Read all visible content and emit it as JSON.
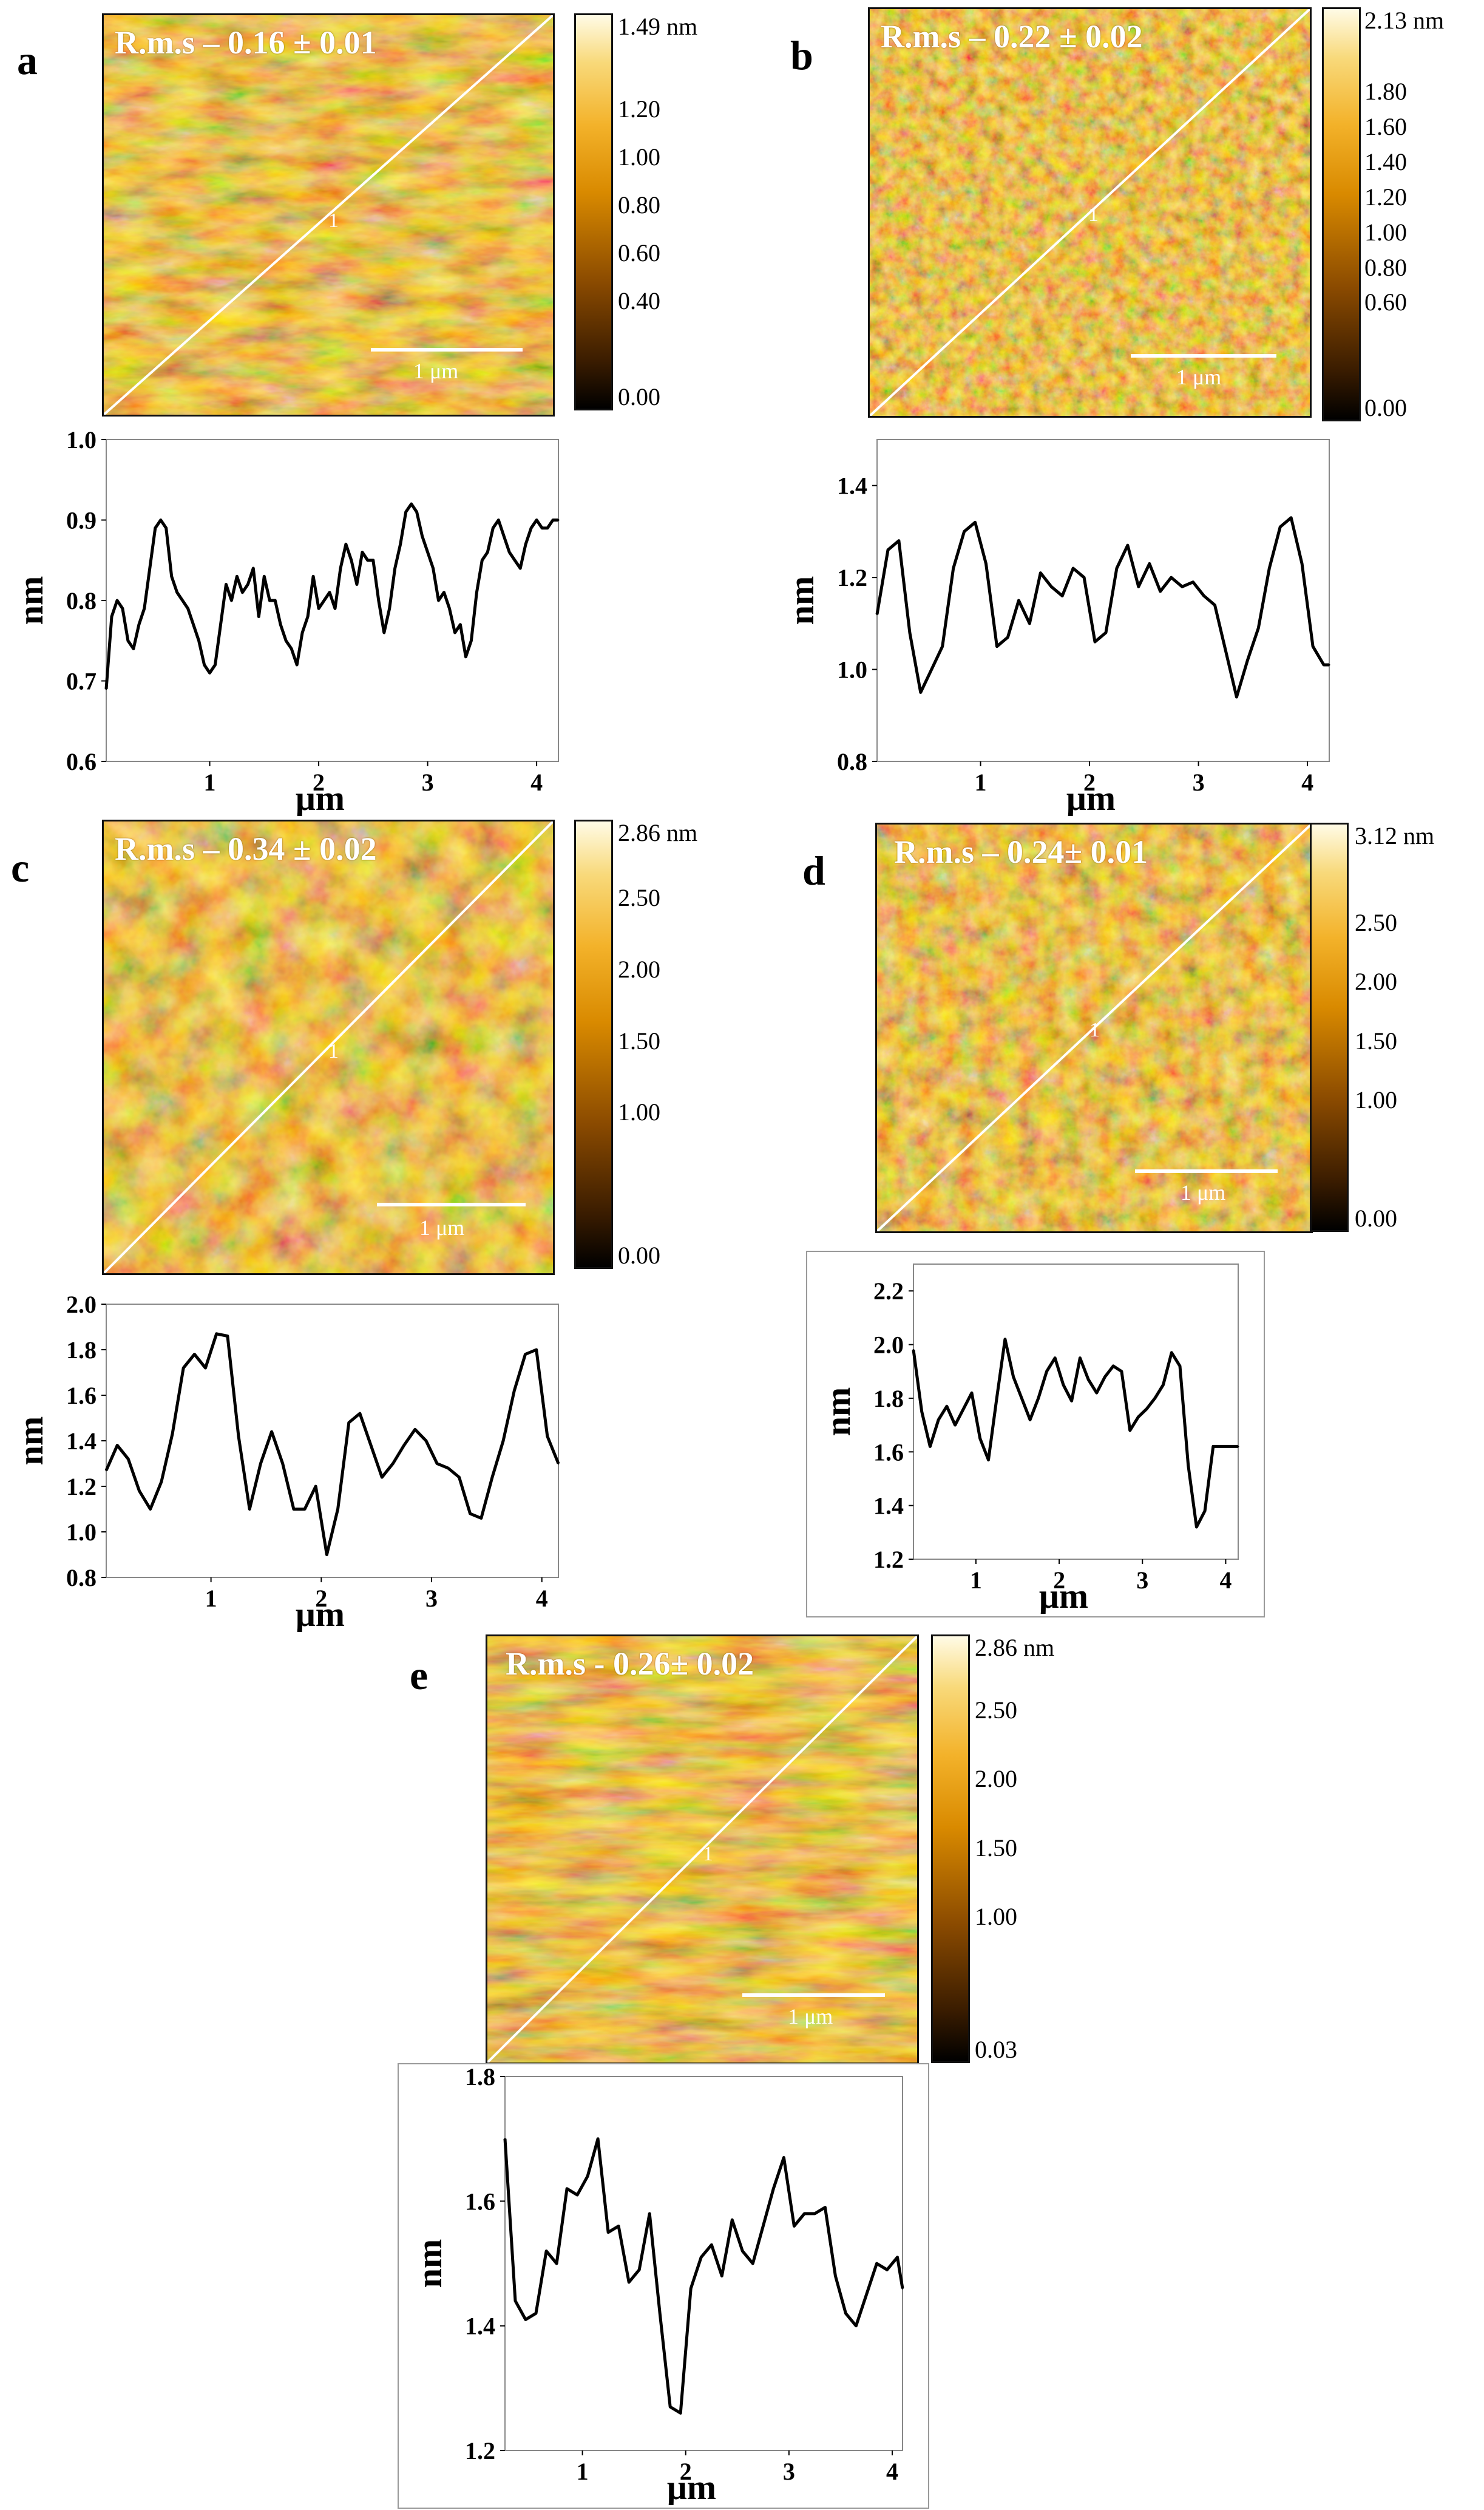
{
  "figure": {
    "panels": [
      {
        "id": "a",
        "letter": "a",
        "rms": "R.m.s – 0.16 ± 0.01",
        "colorbar": {
          "max": "1.49 nm",
          "ticks": [
            "1.20",
            "1.00",
            "0.80",
            "0.60",
            "0.40",
            "0.00"
          ]
        },
        "scale_bar": "1 μm",
        "line_label": "1",
        "texture": {
          "seed": 11,
          "freq": 0.035,
          "streak": 0.012
        }
      },
      {
        "id": "b",
        "letter": "b",
        "rms": "R.m.s – 0.22 ± 0.02",
        "colorbar": {
          "max": "2.13 nm",
          "ticks": [
            "1.80",
            "1.60",
            "1.40",
            "1.20",
            "1.00",
            "0.80",
            "0.60",
            "0.00"
          ]
        },
        "scale_bar": "1 μm",
        "line_label": "1",
        "texture": {
          "seed": 23,
          "freq": 0.045,
          "streak": 0.045
        }
      },
      {
        "id": "c",
        "letter": "c",
        "rms": "R.m.s – 0.34 ± 0.02",
        "colorbar": {
          "max": "2.86 nm",
          "ticks": [
            "2.50",
            "2.00",
            "1.50",
            "1.00",
            "0.00"
          ]
        },
        "scale_bar": "1 μm",
        "line_label": "1",
        "texture": {
          "seed": 37,
          "freq": 0.018,
          "streak": 0.018
        }
      },
      {
        "id": "d",
        "letter": "d",
        "rms": "R.m.s – 0.24± 0.01",
        "colorbar": {
          "max": "3.12 nm",
          "ticks": [
            "2.50",
            "2.00",
            "1.50",
            "1.00",
            "0.00"
          ]
        },
        "scale_bar": "1 μm",
        "line_label": "1",
        "texture": {
          "seed": 41,
          "freq": 0.03,
          "streak": 0.03
        }
      },
      {
        "id": "e",
        "letter": "e",
        "rms": "R.m.s - 0.26± 0.02",
        "colorbar": {
          "max": "2.86 nm",
          "ticks": [
            "2.50",
            "2.00",
            "1.50",
            "1.00",
            "0.03"
          ]
        },
        "scale_bar": "1 μm",
        "line_label": "1",
        "texture": {
          "seed": 53,
          "freq": 0.04,
          "streak": 0.008
        }
      }
    ]
  },
  "chart_data": [
    {
      "panel": "a",
      "type": "line",
      "xlabel": "μm",
      "ylabel": "nm",
      "xlim": [
        0.05,
        4.2
      ],
      "ylim": [
        0.6,
        1.0
      ],
      "xticks": [
        "1",
        "2",
        "3",
        "4"
      ],
      "yticks": [
        "0.6",
        "0.7",
        "0.8",
        "0.9",
        "1.0"
      ],
      "x": [
        0.05,
        0.1,
        0.15,
        0.2,
        0.25,
        0.3,
        0.35,
        0.4,
        0.45,
        0.5,
        0.55,
        0.6,
        0.65,
        0.7,
        0.75,
        0.8,
        0.85,
        0.9,
        0.95,
        1.0,
        1.05,
        1.1,
        1.15,
        1.2,
        1.25,
        1.3,
        1.35,
        1.4,
        1.45,
        1.5,
        1.55,
        1.6,
        1.65,
        1.7,
        1.75,
        1.8,
        1.85,
        1.9,
        1.95,
        2.0,
        2.05,
        2.1,
        2.15,
        2.2,
        2.25,
        2.3,
        2.35,
        2.4,
        2.45,
        2.5,
        2.55,
        2.6,
        2.65,
        2.7,
        2.75,
        2.8,
        2.85,
        2.9,
        2.95,
        3.0,
        3.05,
        3.1,
        3.15,
        3.2,
        3.25,
        3.3,
        3.35,
        3.4,
        3.45,
        3.5,
        3.55,
        3.6,
        3.65,
        3.7,
        3.75,
        3.8,
        3.85,
        3.9,
        3.95,
        4.0,
        4.05,
        4.1,
        4.15,
        4.2
      ],
      "y": [
        0.69,
        0.78,
        0.8,
        0.79,
        0.75,
        0.74,
        0.77,
        0.79,
        0.84,
        0.89,
        0.9,
        0.89,
        0.83,
        0.81,
        0.8,
        0.79,
        0.77,
        0.75,
        0.72,
        0.71,
        0.72,
        0.77,
        0.82,
        0.8,
        0.83,
        0.81,
        0.82,
        0.84,
        0.78,
        0.83,
        0.8,
        0.8,
        0.77,
        0.75,
        0.74,
        0.72,
        0.76,
        0.78,
        0.83,
        0.79,
        0.8,
        0.81,
        0.79,
        0.84,
        0.87,
        0.85,
        0.82,
        0.86,
        0.85,
        0.85,
        0.8,
        0.76,
        0.79,
        0.84,
        0.87,
        0.91,
        0.92,
        0.91,
        0.88,
        0.86,
        0.84,
        0.8,
        0.81,
        0.79,
        0.76,
        0.77,
        0.73,
        0.75,
        0.81,
        0.85,
        0.86,
        0.89,
        0.9,
        0.88,
        0.86,
        0.85,
        0.84,
        0.87,
        0.89,
        0.9,
        0.89,
        0.89,
        0.9,
        0.9
      ]
    },
    {
      "panel": "b",
      "type": "line",
      "xlabel": "μm",
      "ylabel": "nm",
      "xlim": [
        0.05,
        4.2
      ],
      "ylim": [
        0.8,
        1.5
      ],
      "xticks": [
        "1",
        "2",
        "3",
        "4"
      ],
      "yticks": [
        "0.8",
        "1.0",
        "1.2",
        "1.4"
      ],
      "x": [
        0.05,
        0.15,
        0.25,
        0.35,
        0.45,
        0.55,
        0.65,
        0.75,
        0.85,
        0.95,
        1.05,
        1.15,
        1.25,
        1.35,
        1.45,
        1.55,
        1.65,
        1.75,
        1.85,
        1.95,
        2.05,
        2.15,
        2.25,
        2.35,
        2.45,
        2.55,
        2.65,
        2.75,
        2.85,
        2.95,
        3.05,
        3.15,
        3.25,
        3.35,
        3.45,
        3.55,
        3.65,
        3.75,
        3.85,
        3.95,
        4.05,
        4.15,
        4.2
      ],
      "y": [
        1.12,
        1.26,
        1.28,
        1.08,
        0.95,
        1.0,
        1.05,
        1.22,
        1.3,
        1.32,
        1.23,
        1.05,
        1.07,
        1.15,
        1.1,
        1.21,
        1.18,
        1.16,
        1.22,
        1.2,
        1.06,
        1.08,
        1.22,
        1.27,
        1.18,
        1.23,
        1.17,
        1.2,
        1.18,
        1.19,
        1.16,
        1.14,
        1.04,
        0.94,
        1.02,
        1.09,
        1.22,
        1.31,
        1.33,
        1.23,
        1.05,
        1.01,
        1.01
      ]
    },
    {
      "panel": "c",
      "type": "line",
      "xlabel": "μm",
      "ylabel": "nm",
      "xlim": [
        0.05,
        4.15
      ],
      "ylim": [
        0.8,
        2.0
      ],
      "xticks": [
        "1",
        "2",
        "3",
        "4"
      ],
      "yticks": [
        "0.8",
        "1.0",
        "1.2",
        "1.4",
        "1.6",
        "1.8",
        "2.0"
      ],
      "x": [
        0.05,
        0.15,
        0.25,
        0.35,
        0.45,
        0.55,
        0.65,
        0.75,
        0.85,
        0.95,
        1.05,
        1.15,
        1.25,
        1.35,
        1.45,
        1.55,
        1.65,
        1.75,
        1.85,
        1.95,
        2.05,
        2.15,
        2.25,
        2.35,
        2.45,
        2.55,
        2.65,
        2.75,
        2.85,
        2.95,
        3.05,
        3.15,
        3.25,
        3.35,
        3.45,
        3.55,
        3.65,
        3.75,
        3.85,
        3.95,
        4.05,
        4.15
      ],
      "y": [
        1.27,
        1.38,
        1.32,
        1.18,
        1.1,
        1.22,
        1.43,
        1.72,
        1.78,
        1.72,
        1.87,
        1.86,
        1.42,
        1.1,
        1.3,
        1.44,
        1.3,
        1.1,
        1.1,
        1.2,
        0.9,
        1.1,
        1.48,
        1.52,
        1.38,
        1.24,
        1.3,
        1.38,
        1.45,
        1.4,
        1.3,
        1.28,
        1.24,
        1.08,
        1.06,
        1.24,
        1.4,
        1.62,
        1.78,
        1.8,
        1.42,
        1.3
      ]
    },
    {
      "panel": "d",
      "type": "line",
      "xlabel": "μm",
      "ylabel": "nm",
      "xlim": [
        0.25,
        4.15
      ],
      "ylim": [
        1.2,
        2.3
      ],
      "xticks": [
        "1",
        "2",
        "3",
        "4"
      ],
      "yticks": [
        "1.2",
        "1.4",
        "1.6",
        "1.8",
        "2.0",
        "2.2"
      ],
      "x": [
        0.25,
        0.35,
        0.45,
        0.55,
        0.65,
        0.75,
        0.85,
        0.95,
        1.05,
        1.15,
        1.25,
        1.35,
        1.45,
        1.55,
        1.65,
        1.75,
        1.85,
        1.95,
        2.05,
        2.15,
        2.25,
        2.35,
        2.45,
        2.55,
        2.65,
        2.75,
        2.85,
        2.95,
        3.05,
        3.15,
        3.25,
        3.35,
        3.45,
        3.55,
        3.65,
        3.75,
        3.85,
        3.95,
        4.05,
        4.15
      ],
      "y": [
        1.98,
        1.75,
        1.62,
        1.72,
        1.77,
        1.7,
        1.76,
        1.82,
        1.65,
        1.57,
        1.8,
        2.02,
        1.88,
        1.8,
        1.72,
        1.8,
        1.9,
        1.95,
        1.85,
        1.79,
        1.95,
        1.87,
        1.82,
        1.88,
        1.92,
        1.9,
        1.68,
        1.73,
        1.76,
        1.8,
        1.85,
        1.97,
        1.92,
        1.55,
        1.32,
        1.38,
        1.62,
        1.62,
        1.62,
        1.62
      ]
    },
    {
      "panel": "e",
      "type": "line",
      "xlabel": "μm",
      "ylabel": "nm",
      "xlim": [
        0.25,
        4.1
      ],
      "ylim": [
        1.2,
        1.8
      ],
      "xticks": [
        "1",
        "2",
        "3",
        "4"
      ],
      "yticks": [
        "1.2",
        "1.4",
        "1.6",
        "1.8"
      ],
      "x": [
        0.25,
        0.35,
        0.45,
        0.55,
        0.65,
        0.75,
        0.85,
        0.95,
        1.05,
        1.15,
        1.25,
        1.35,
        1.45,
        1.55,
        1.65,
        1.75,
        1.85,
        1.95,
        2.05,
        2.15,
        2.25,
        2.35,
        2.45,
        2.55,
        2.65,
        2.75,
        2.85,
        2.95,
        3.05,
        3.15,
        3.25,
        3.35,
        3.45,
        3.55,
        3.65,
        3.75,
        3.85,
        3.95,
        4.05,
        4.1
      ],
      "y": [
        1.7,
        1.44,
        1.41,
        1.42,
        1.52,
        1.5,
        1.62,
        1.61,
        1.64,
        1.7,
        1.55,
        1.56,
        1.47,
        1.49,
        1.58,
        1.42,
        1.27,
        1.26,
        1.46,
        1.51,
        1.53,
        1.48,
        1.57,
        1.52,
        1.5,
        1.56,
        1.62,
        1.67,
        1.56,
        1.58,
        1.58,
        1.59,
        1.48,
        1.42,
        1.4,
        1.45,
        1.5,
        1.49,
        1.51,
        1.46
      ]
    }
  ]
}
